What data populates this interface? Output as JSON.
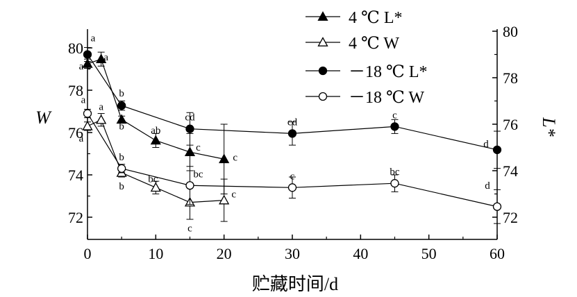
{
  "chart_data": {
    "type": "line",
    "xlabel": "贮藏时间/d",
    "ylabel_left": "W",
    "ylabel_right": "L*",
    "x_ticks": [
      0,
      10,
      20,
      30,
      40,
      50,
      60
    ],
    "y_left_ticks": [
      72,
      74,
      76,
      78,
      80
    ],
    "y_right_ticks": [
      72,
      74,
      76,
      78,
      80
    ],
    "xlim": [
      0,
      60
    ],
    "ylim_left": [
      71,
      81
    ],
    "ylim_right": [
      71,
      80.5
    ],
    "legend_position": "top-right",
    "series": [
      {
        "name": "4 ℃ L*",
        "axis": "right",
        "marker": "triangle-filled",
        "x": [
          0,
          2,
          5,
          10,
          15,
          20
        ],
        "y": [
          78.6,
          78.8,
          76.2,
          75.3,
          74.8,
          74.5
        ],
        "err": [
          0.2,
          0.3,
          0.15,
          0.3,
          0.8,
          1.5
        ],
        "labels": [
          "a",
          "a",
          "b",
          "ab",
          "c",
          "c"
        ]
      },
      {
        "name": "4 ℃ W",
        "axis": "left",
        "marker": "triangle-open",
        "x": [
          0,
          2,
          5,
          10,
          15,
          20
        ],
        "y": [
          76.3,
          76.6,
          74.1,
          73.4,
          72.7,
          72.8
        ],
        "err": [
          0.2,
          0.3,
          0.2,
          0.3,
          0.8,
          1.0
        ],
        "labels": [
          "a",
          "a",
          "b",
          "bc",
          "c",
          "c"
        ]
      },
      {
        "name": "－18 ℃ L*",
        "axis": "right",
        "marker": "circle-filled",
        "x": [
          0,
          5,
          15,
          30,
          45,
          60
        ],
        "y": [
          79.0,
          76.8,
          75.8,
          75.6,
          75.9,
          74.9
        ],
        "err": [
          0.3,
          0.2,
          0.7,
          0.5,
          0.3,
          0.8
        ],
        "labels": [
          "a",
          "b",
          "cd",
          "cd",
          "c",
          "d"
        ]
      },
      {
        "name": "－18 ℃ W",
        "axis": "left",
        "marker": "circle-open",
        "x": [
          0,
          5,
          15,
          30,
          45,
          60
        ],
        "y": [
          76.9,
          74.3,
          73.5,
          73.4,
          73.6,
          72.5
        ],
        "err": [
          0.2,
          0.2,
          0.9,
          0.5,
          0.4,
          0.8
        ],
        "labels": [
          "a",
          "b",
          "bc",
          "c",
          "bc",
          "d"
        ]
      }
    ]
  }
}
